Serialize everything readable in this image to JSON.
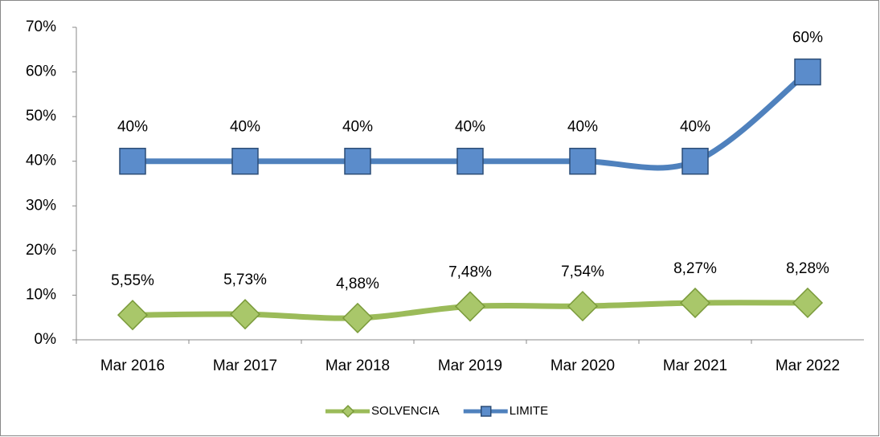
{
  "chart_data": {
    "type": "line",
    "categories": [
      "Mar 2016",
      "Mar 2017",
      "Mar 2018",
      "Mar 2019",
      "Mar 2020",
      "Mar 2021",
      "Mar 2022"
    ],
    "series": [
      {
        "name": "SOLVENCIA",
        "color": "#9bbb59",
        "marker": "diamond",
        "values": [
          5.55,
          5.73,
          4.88,
          7.48,
          7.54,
          8.27,
          8.28
        ],
        "value_labels": [
          "5,55%",
          "5,73%",
          "4,88%",
          "7,48%",
          "7,54%",
          "8,27%",
          "8,28%"
        ]
      },
      {
        "name": "LIMITE",
        "color": "#4f81bd",
        "marker": "square",
        "values": [
          40,
          40,
          40,
          40,
          40,
          40,
          60
        ],
        "value_labels": [
          "40%",
          "40%",
          "40%",
          "40%",
          "40%",
          "40%",
          "60%"
        ]
      }
    ],
    "ylim": [
      0,
      70
    ],
    "yticks": [
      {
        "value": 0,
        "label": "0%"
      },
      {
        "value": 10,
        "label": "10%"
      },
      {
        "value": 20,
        "label": "20%"
      },
      {
        "value": 30,
        "label": "30%"
      },
      {
        "value": 40,
        "label": "40%"
      },
      {
        "value": 50,
        "label": "50%"
      },
      {
        "value": 60,
        "label": "60%"
      },
      {
        "value": 70,
        "label": "70%"
      }
    ],
    "smooth": true,
    "legend": "bottom"
  }
}
